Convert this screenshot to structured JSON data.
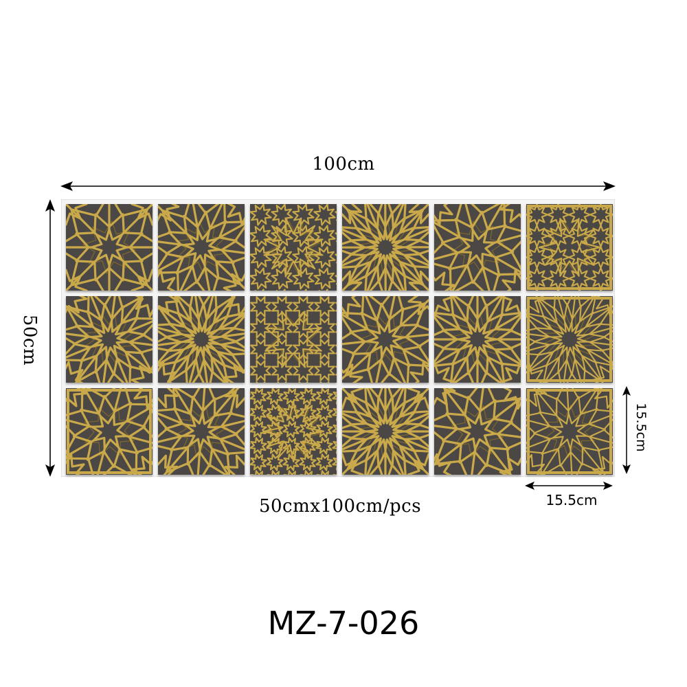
{
  "dimensions": {
    "width_label": "100cm",
    "height_label": "50cm",
    "sheet_label": "50cmx100cm/pcs",
    "tile_width_label": "15.5cm",
    "tile_height_label": "15.5cm"
  },
  "product_code": "MZ-7-026",
  "tiles": {
    "rows": 3,
    "columns": 6,
    "pattern": "gold geometric islamic star lattice on dark grey"
  },
  "colors": {
    "gold": "#c9a94a",
    "gold_dark": "#8f7226",
    "tile_background": "#4a4745",
    "arrow": "#000000"
  }
}
